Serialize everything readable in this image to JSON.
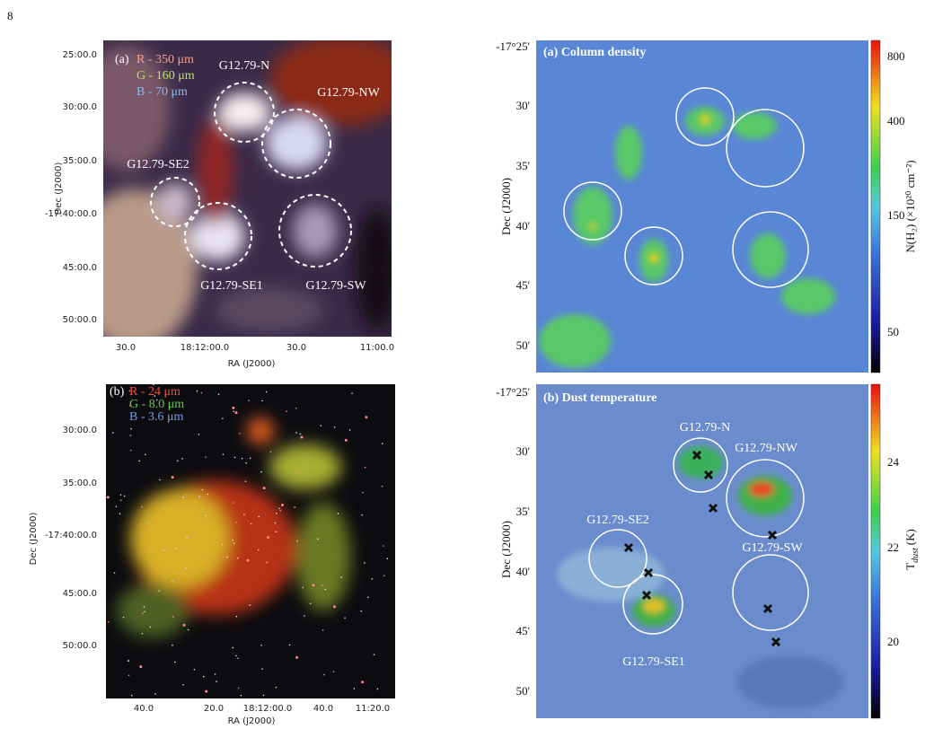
{
  "page_number": "8",
  "panels": [
    {
      "legend": {
        "label": "(a)",
        "items": [
          "R - 350 μm",
          "G - 160 μm",
          "B - 70 μm"
        ]
      },
      "regions": [
        "G12.79-N",
        "G12.79-NW",
        "G12.79-SE2",
        "G12.79-SE1",
        "G12.79-SW"
      ],
      "yticks": [
        "25:00.0",
        "30:00.0",
        "35:00.0",
        "-17:40:00.0",
        "45:00.0",
        "50:00.0"
      ],
      "ylabel": "Dec (J2000)",
      "xticks": [
        "30.0",
        "18:12:00.0",
        "30.0",
        "11:00.0"
      ],
      "xlabel": "RA (J2000)"
    },
    {
      "legend": {
        "label": "(b)",
        "items": [
          "R - 24 μm",
          "G - 8.0 μm",
          "B - 3.6 μm"
        ]
      },
      "yticks": [
        "30:00.0",
        "35:00.0",
        "-17:40:00.0",
        "45:00.0",
        "50:00.0"
      ],
      "ylabel": "Dec (J2000)",
      "xticks": [
        "40.0",
        "20.0",
        "18:12:00.0",
        "40.0",
        "11:20.0"
      ],
      "xlabel": "RA (J2000)"
    },
    {
      "title": "(a) Column density",
      "yticks": [
        "-17°25'",
        "30'",
        "35'",
        "40'",
        "45'",
        "50'"
      ],
      "ylabel": "Dec (J2000)",
      "colorbar": {
        "ticks": [
          "800",
          "400",
          "150",
          "50"
        ],
        "label": "N(H₂) (×10²⁰ cm⁻²)"
      }
    },
    {
      "title": "(b) Dust temperature",
      "regions": [
        "G12.79-N",
        "G12.79-NW",
        "G12.79-SE2",
        "G12.79-SW",
        "G12.79-SE1"
      ],
      "yticks": [
        "-17°25'",
        "30'",
        "35'",
        "40'",
        "45'",
        "50'"
      ],
      "ylabel": "Dec (J2000)",
      "colorbar": {
        "ticks": [
          "24",
          "22",
          "20"
        ],
        "label": {
          "symbol": "T",
          "subscript": "dust",
          "unit": "(K)"
        }
      }
    }
  ]
}
